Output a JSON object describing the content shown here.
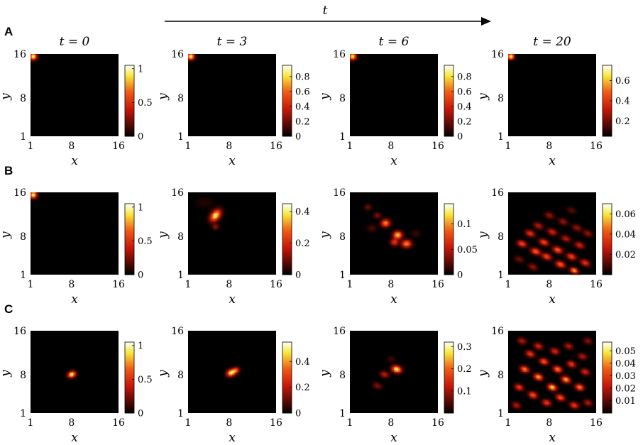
{
  "figure": {
    "time_arrow_label": "t",
    "colors": {
      "low": "#000000",
      "mid": "#e8261a",
      "high": "#f6e83a",
      "top": "#ffffff"
    }
  },
  "chart_data": [
    {
      "type": "heatmap",
      "row": "A",
      "title": "t = 0",
      "xlabel": "x",
      "ylabel": "y",
      "xticks": [
        "1",
        "8",
        "16"
      ],
      "yticks": [
        "1",
        "8",
        "16"
      ],
      "xlim": [
        1,
        16
      ],
      "ylim": [
        1,
        16
      ],
      "colorbar_ticks": [
        "0",
        "0.5",
        "1"
      ],
      "colorbar_range": [
        0,
        1.05
      ],
      "colormap": "hot",
      "peaks": [
        {
          "x": 1,
          "y": 16,
          "value": 1,
          "sx": 0.45,
          "sy": 0.45,
          "rot": 0
        }
      ]
    },
    {
      "type": "heatmap",
      "row": "A",
      "title": "t = 3",
      "xlabel": "x",
      "ylabel": "y",
      "xticks": [
        "1",
        "8",
        "16"
      ],
      "yticks": [
        "1",
        "8",
        "16"
      ],
      "xlim": [
        1,
        16
      ],
      "ylim": [
        1,
        16
      ],
      "colorbar_ticks": [
        "0",
        "0.2",
        "0.4",
        "0.6",
        "0.8"
      ],
      "colorbar_range": [
        0,
        0.95
      ],
      "colormap": "hot",
      "peaks": [
        {
          "x": 1,
          "y": 16,
          "value": 0.9,
          "sx": 0.45,
          "sy": 0.45,
          "rot": 0
        }
      ]
    },
    {
      "type": "heatmap",
      "row": "A",
      "title": "t = 6",
      "xlabel": "x",
      "ylabel": "y",
      "xticks": [
        "1",
        "8",
        "16"
      ],
      "yticks": [
        "1",
        "8",
        "16"
      ],
      "xlim": [
        1,
        16
      ],
      "ylim": [
        1,
        16
      ],
      "colorbar_ticks": [
        "0",
        "0.2",
        "0.4",
        "0.6",
        "0.8"
      ],
      "colorbar_range": [
        0,
        0.95
      ],
      "colormap": "hot",
      "peaks": [
        {
          "x": 1,
          "y": 16,
          "value": 0.88,
          "sx": 0.45,
          "sy": 0.45,
          "rot": 0
        }
      ]
    },
    {
      "type": "heatmap",
      "row": "A",
      "title": "t = 20",
      "xlabel": "x",
      "ylabel": "y",
      "xticks": [
        "1",
        "8",
        "16"
      ],
      "yticks": [
        "1",
        "8",
        "16"
      ],
      "xlim": [
        1,
        16
      ],
      "ylim": [
        1,
        16
      ],
      "colorbar_ticks": [
        "0.2",
        "0.4",
        "0.6"
      ],
      "colorbar_range": [
        0.05,
        0.75
      ],
      "colormap": "hot",
      "peaks": [
        {
          "x": 1,
          "y": 16,
          "value": 0.7,
          "sx": 0.45,
          "sy": 0.45,
          "rot": 0
        }
      ]
    },
    {
      "type": "heatmap",
      "row": "B",
      "title": "",
      "xlabel": "x",
      "ylabel": "y",
      "xticks": [
        "1",
        "8",
        "16"
      ],
      "yticks": [
        "1",
        "8",
        "16"
      ],
      "xlim": [
        1,
        16
      ],
      "ylim": [
        1,
        16
      ],
      "colorbar_ticks": [
        "0",
        "0.5",
        "1"
      ],
      "colorbar_range": [
        0,
        1.05
      ],
      "colormap": "hot",
      "peaks": [
        {
          "x": 1,
          "y": 16,
          "value": 1,
          "sx": 0.45,
          "sy": 0.45,
          "rot": 0
        }
      ]
    },
    {
      "type": "heatmap",
      "row": "B",
      "title": "",
      "xlabel": "x",
      "ylabel": "y",
      "xticks": [
        "1",
        "8",
        "16"
      ],
      "yticks": [
        "1",
        "8",
        "16"
      ],
      "xlim": [
        1,
        16
      ],
      "ylim": [
        1,
        16
      ],
      "colorbar_ticks": [
        "0",
        "0.2",
        "0.4"
      ],
      "colorbar_range": [
        0,
        0.45
      ],
      "colormap": "hot",
      "peaks": [
        {
          "x": 5.5,
          "y": 12,
          "value": 0.42,
          "sx": 0.55,
          "sy": 0.85,
          "rot": -35
        },
        {
          "x": 5.5,
          "y": 9.8,
          "value": 0.12,
          "sx": 0.4,
          "sy": 0.4,
          "rot": 0
        },
        {
          "x": 3.5,
          "y": 14.5,
          "value": 0.03,
          "sx": 1.2,
          "sy": 0.8,
          "rot": 0
        }
      ]
    },
    {
      "type": "heatmap",
      "row": "B",
      "title": "",
      "xlabel": "x",
      "ylabel": "y",
      "xticks": [
        "1",
        "8",
        "16"
      ],
      "yticks": [
        "1",
        "8",
        "16"
      ],
      "xlim": [
        1,
        16
      ],
      "ylim": [
        1,
        16
      ],
      "colorbar_ticks": [
        "0",
        "0.05",
        "0.1"
      ],
      "colorbar_range": [
        0,
        0.14
      ],
      "colormap": "hot",
      "peaks": [
        {
          "x": 7,
          "y": 10.5,
          "value": 0.1,
          "sx": 0.55,
          "sy": 0.5,
          "rot": 0
        },
        {
          "x": 9.2,
          "y": 8.2,
          "value": 0.12,
          "sx": 0.55,
          "sy": 0.5,
          "rot": 0
        },
        {
          "x": 10.8,
          "y": 6.5,
          "value": 0.1,
          "sx": 0.6,
          "sy": 0.5,
          "rot": 0
        },
        {
          "x": 8.6,
          "y": 6.8,
          "value": 0.07,
          "sx": 0.5,
          "sy": 0.45,
          "rot": 0
        },
        {
          "x": 5.5,
          "y": 12,
          "value": 0.035,
          "sx": 0.45,
          "sy": 0.4,
          "rot": 0
        },
        {
          "x": 3.8,
          "y": 13.6,
          "value": 0.03,
          "sx": 0.45,
          "sy": 0.4,
          "rot": 0
        },
        {
          "x": 4.5,
          "y": 9.5,
          "value": 0.02,
          "sx": 0.6,
          "sy": 0.5,
          "rot": 0
        },
        {
          "x": 12.5,
          "y": 8.5,
          "value": 0.015,
          "sx": 0.6,
          "sy": 0.5,
          "rot": 0
        }
      ]
    },
    {
      "type": "heatmap",
      "row": "B",
      "title": "",
      "xlabel": "x",
      "ylabel": "y",
      "xticks": [
        "1",
        "8",
        "16"
      ],
      "yticks": [
        "1",
        "8",
        "16"
      ],
      "xlim": [
        1,
        16
      ],
      "ylim": [
        1,
        16
      ],
      "colorbar_ticks": [
        "0.02",
        "0.04",
        "0.06"
      ],
      "colorbar_range": [
        0,
        0.07
      ],
      "colormap": "hot",
      "peaks": [
        {
          "x": 3,
          "y": 6.5,
          "value": 0.04,
          "sx": 0.6,
          "sy": 0.4,
          "rot": -25
        },
        {
          "x": 5.5,
          "y": 5,
          "value": 0.045,
          "sx": 0.6,
          "sy": 0.4,
          "rot": -25
        },
        {
          "x": 7.5,
          "y": 4,
          "value": 0.04,
          "sx": 0.6,
          "sy": 0.4,
          "rot": -25
        },
        {
          "x": 10,
          "y": 2.5,
          "value": 0.045,
          "sx": 0.6,
          "sy": 0.4,
          "rot": -25
        },
        {
          "x": 12.5,
          "y": 1.3,
          "value": 0.055,
          "sx": 0.5,
          "sy": 0.35,
          "rot": -25
        },
        {
          "x": 4.5,
          "y": 8.5,
          "value": 0.035,
          "sx": 0.6,
          "sy": 0.4,
          "rot": -25
        },
        {
          "x": 7,
          "y": 6.8,
          "value": 0.04,
          "sx": 0.6,
          "sy": 0.4,
          "rot": -25
        },
        {
          "x": 9.5,
          "y": 5.3,
          "value": 0.045,
          "sx": 0.6,
          "sy": 0.4,
          "rot": -25
        },
        {
          "x": 12,
          "y": 4,
          "value": 0.04,
          "sx": 0.6,
          "sy": 0.4,
          "rot": -25
        },
        {
          "x": 14.5,
          "y": 2.8,
          "value": 0.035,
          "sx": 0.6,
          "sy": 0.4,
          "rot": -25
        },
        {
          "x": 6,
          "y": 10,
          "value": 0.025,
          "sx": 0.6,
          "sy": 0.4,
          "rot": -25
        },
        {
          "x": 8.5,
          "y": 8.8,
          "value": 0.03,
          "sx": 0.6,
          "sy": 0.4,
          "rot": -25
        },
        {
          "x": 11,
          "y": 7.5,
          "value": 0.025,
          "sx": 0.6,
          "sy": 0.4,
          "rot": -25
        },
        {
          "x": 13.5,
          "y": 6.2,
          "value": 0.03,
          "sx": 0.6,
          "sy": 0.4,
          "rot": -25
        },
        {
          "x": 8,
          "y": 12,
          "value": 0.02,
          "sx": 0.6,
          "sy": 0.4,
          "rot": -25
        },
        {
          "x": 10.5,
          "y": 10.8,
          "value": 0.02,
          "sx": 0.6,
          "sy": 0.4,
          "rot": -25
        },
        {
          "x": 13,
          "y": 9.6,
          "value": 0.02,
          "sx": 0.6,
          "sy": 0.4,
          "rot": -25
        },
        {
          "x": 15,
          "y": 8.5,
          "value": 0.02,
          "sx": 0.6,
          "sy": 0.4,
          "rot": -25
        },
        {
          "x": 12,
          "y": 13,
          "value": 0.012,
          "sx": 0.6,
          "sy": 0.4,
          "rot": -25
        },
        {
          "x": 2.5,
          "y": 3.5,
          "value": 0.015,
          "sx": 0.6,
          "sy": 0.4,
          "rot": -25
        },
        {
          "x": 5,
          "y": 2,
          "value": 0.02,
          "sx": 0.6,
          "sy": 0.4,
          "rot": -25
        }
      ]
    },
    {
      "type": "heatmap",
      "row": "C",
      "title": "",
      "xlabel": "x",
      "ylabel": "y",
      "xticks": [
        "1",
        "8",
        "16"
      ],
      "yticks": [
        "1",
        "8",
        "16"
      ],
      "xlim": [
        1,
        16
      ],
      "ylim": [
        1,
        16
      ],
      "colorbar_ticks": [
        "0",
        "0.5",
        "1"
      ],
      "colorbar_range": [
        0,
        1.05
      ],
      "colormap": "hot",
      "peaks": [
        {
          "x": 8,
          "y": 8,
          "value": 1,
          "sx": 0.5,
          "sy": 0.4,
          "rot": 30
        }
      ]
    },
    {
      "type": "heatmap",
      "row": "C",
      "title": "",
      "xlabel": "x",
      "ylabel": "y",
      "xticks": [
        "1",
        "8",
        "16"
      ],
      "yticks": [
        "1",
        "8",
        "16"
      ],
      "xlim": [
        1,
        16
      ],
      "ylim": [
        1,
        16
      ],
      "colorbar_ticks": [
        "0",
        "0.2",
        "0.4"
      ],
      "colorbar_range": [
        0,
        0.55
      ],
      "colormap": "hot",
      "peaks": [
        {
          "x": 8.3,
          "y": 8.3,
          "value": 0.5,
          "sx": 0.55,
          "sy": 0.45,
          "rot": 30
        },
        {
          "x": 9.2,
          "y": 8.8,
          "value": 0.3,
          "sx": 0.45,
          "sy": 0.4,
          "rot": 30
        }
      ]
    },
    {
      "type": "heatmap",
      "row": "C",
      "title": "",
      "xlabel": "x",
      "ylabel": "y",
      "xticks": [
        "1",
        "8",
        "16"
      ],
      "yticks": [
        "1",
        "8",
        "16"
      ],
      "xlim": [
        1,
        16
      ],
      "ylim": [
        1,
        16
      ],
      "colorbar_ticks": [
        "0.1",
        "0.2",
        "0.3"
      ],
      "colorbar_range": [
        0,
        0.32
      ],
      "colormap": "hot",
      "peaks": [
        {
          "x": 9,
          "y": 9,
          "value": 0.3,
          "sx": 0.6,
          "sy": 0.45,
          "rot": -20
        },
        {
          "x": 6.8,
          "y": 8,
          "value": 0.12,
          "sx": 0.55,
          "sy": 0.4,
          "rot": -20
        },
        {
          "x": 5.5,
          "y": 5.8,
          "value": 0.08,
          "sx": 0.6,
          "sy": 0.4,
          "rot": -20
        },
        {
          "x": 8,
          "y": 11,
          "value": 0.04,
          "sx": 0.5,
          "sy": 0.4,
          "rot": 0
        }
      ]
    },
    {
      "type": "heatmap",
      "row": "C",
      "title": "",
      "xlabel": "x",
      "ylabel": "y",
      "xticks": [
        "1",
        "8",
        "16"
      ],
      "yticks": [
        "1",
        "8",
        "16"
      ],
      "xlim": [
        1,
        16
      ],
      "ylim": [
        1,
        16
      ],
      "colorbar_ticks": [
        "0.01",
        "0.02",
        "0.03",
        "0.04",
        "0.05"
      ],
      "colorbar_range": [
        0,
        0.057
      ],
      "colormap": "hot",
      "peaks": [
        {
          "x": 3.5,
          "y": 9,
          "value": 0.04,
          "sx": 0.55,
          "sy": 0.4,
          "rot": -25
        },
        {
          "x": 6,
          "y": 7.5,
          "value": 0.045,
          "sx": 0.55,
          "sy": 0.4,
          "rot": -25
        },
        {
          "x": 8.5,
          "y": 5.5,
          "value": 0.05,
          "sx": 0.55,
          "sy": 0.4,
          "rot": -25
        },
        {
          "x": 11,
          "y": 7,
          "value": 0.045,
          "sx": 0.55,
          "sy": 0.4,
          "rot": -25
        },
        {
          "x": 13.5,
          "y": 5.5,
          "value": 0.04,
          "sx": 0.55,
          "sy": 0.4,
          "rot": -25
        },
        {
          "x": 2.5,
          "y": 5.5,
          "value": 0.03,
          "sx": 0.55,
          "sy": 0.4,
          "rot": -25
        },
        {
          "x": 5,
          "y": 4,
          "value": 0.035,
          "sx": 0.55,
          "sy": 0.4,
          "rot": -25
        },
        {
          "x": 7.5,
          "y": 2.5,
          "value": 0.03,
          "sx": 0.55,
          "sy": 0.4,
          "rot": -25
        },
        {
          "x": 10,
          "y": 3.5,
          "value": 0.035,
          "sx": 0.55,
          "sy": 0.4,
          "rot": -25
        },
        {
          "x": 12.5,
          "y": 2,
          "value": 0.03,
          "sx": 0.55,
          "sy": 0.4,
          "rot": -25
        },
        {
          "x": 4.5,
          "y": 12,
          "value": 0.03,
          "sx": 0.55,
          "sy": 0.4,
          "rot": -25
        },
        {
          "x": 7,
          "y": 10.5,
          "value": 0.035,
          "sx": 0.55,
          "sy": 0.4,
          "rot": -25
        },
        {
          "x": 9.5,
          "y": 9,
          "value": 0.04,
          "sx": 0.55,
          "sy": 0.4,
          "rot": -25
        },
        {
          "x": 12,
          "y": 10,
          "value": 0.03,
          "sx": 0.55,
          "sy": 0.4,
          "rot": -25
        },
        {
          "x": 14.5,
          "y": 8.5,
          "value": 0.025,
          "sx": 0.55,
          "sy": 0.4,
          "rot": -25
        },
        {
          "x": 3,
          "y": 14.5,
          "value": 0.02,
          "sx": 0.55,
          "sy": 0.4,
          "rot": -25
        },
        {
          "x": 6,
          "y": 13.5,
          "value": 0.025,
          "sx": 0.55,
          "sy": 0.4,
          "rot": -25
        },
        {
          "x": 9,
          "y": 12.5,
          "value": 0.025,
          "sx": 0.55,
          "sy": 0.4,
          "rot": -25
        },
        {
          "x": 11.5,
          "y": 13.5,
          "value": 0.02,
          "sx": 0.55,
          "sy": 0.4,
          "rot": -25
        },
        {
          "x": 14,
          "y": 11.5,
          "value": 0.02,
          "sx": 0.55,
          "sy": 0.4,
          "rot": -25
        },
        {
          "x": 15,
          "y": 14.5,
          "value": 0.015,
          "sx": 0.55,
          "sy": 0.4,
          "rot": -25
        },
        {
          "x": 2,
          "y": 2,
          "value": 0.02,
          "sx": 0.55,
          "sy": 0.4,
          "rot": -25
        },
        {
          "x": 15,
          "y": 2.5,
          "value": 0.02,
          "sx": 0.55,
          "sy": 0.4,
          "rot": -25
        }
      ]
    }
  ]
}
